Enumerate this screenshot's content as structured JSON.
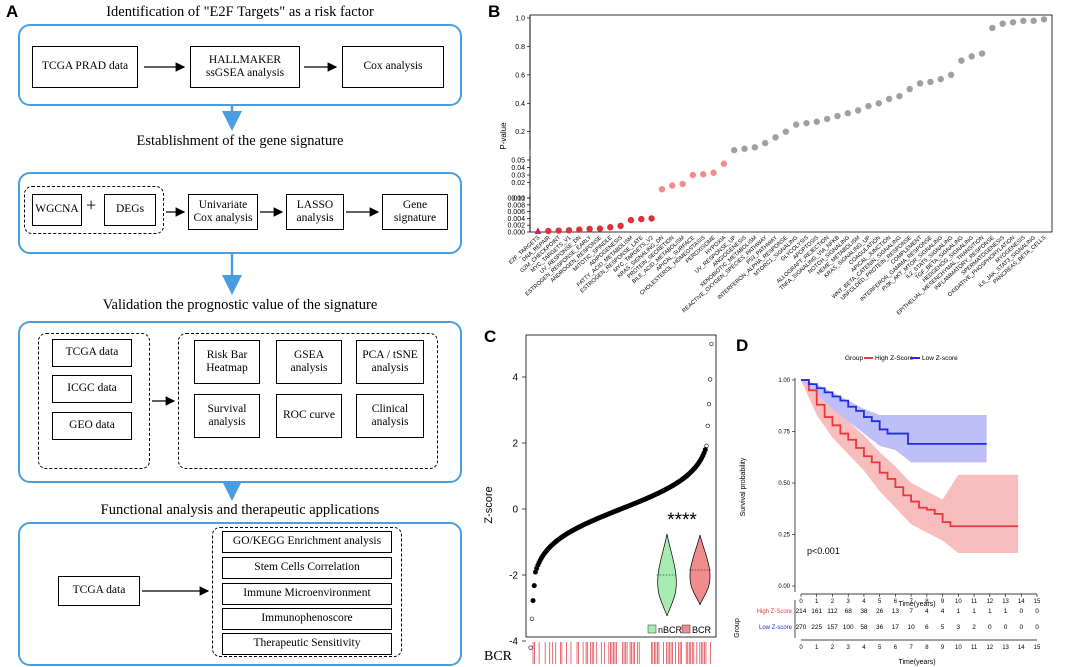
{
  "panelA": {
    "letter": "A",
    "stage1": {
      "title": "Identification of \"E2F Targets\" as a risk factor",
      "boxes": [
        "TCGA PRAD data",
        "HALLMAKER ssGSEA analysis",
        "Cox analysis"
      ]
    },
    "stage2": {
      "title": "Establishment of the gene signature",
      "boxes": [
        "WGCNA",
        "+",
        "DEGs",
        "Univariate Cox analysis",
        "LASSO analysis",
        "Gene signature"
      ]
    },
    "stage3": {
      "title": "Validation the prognostic value of the signature",
      "data_boxes": [
        "TCGA data",
        "ICGC data",
        "GEO data"
      ],
      "analysis_boxes": [
        "Risk Bar Heatmap",
        "GSEA analysis",
        "PCA / tSNE analysis",
        "Survival analysis",
        "ROC curve",
        "Clinical analysis"
      ]
    },
    "stage4": {
      "title": "Functional analysis and therapeutic applications",
      "left_box": "TCGA data",
      "boxes": [
        "GO/KEGG Enrichment analysis",
        "Stem Cells Correlation",
        "Immune Microenvironment",
        "Immunophenoscore",
        "Therapeutic Sensitivity"
      ]
    }
  },
  "chart_data": [
    {
      "panel": "B",
      "type": "scatter",
      "ylabel": "P-value",
      "upper_ticks": [
        "0.2",
        "0.4",
        "0.6",
        "0.8",
        "1.0"
      ],
      "mid_ticks": [
        "0.01",
        "0.02",
        "0.03",
        "0.04",
        "0.05"
      ],
      "lower_ticks": [
        "0.000",
        "0.002",
        "0.004",
        "0.006",
        "0.008",
        "0.010"
      ],
      "categories": [
        "E2F_TARGETS",
        "DNA_REPAIR",
        "G2M_CHECKPOINT",
        "MYC_TARGETS_V1",
        "UV_RESPONSE_DN",
        "ESTROGEN_RESPONSE_EARLY",
        "ANDROGEN_RESPONSE",
        "MITOTIC_SPINDLE",
        "ADIPOGENESIS",
        "FATTY_ACID_METABOLISM",
        "ESTROGEN_RESPONSE_LATE",
        "MYC_TARGETS_V2",
        "KRAS_SIGNALING_DN",
        "PROTEIN_SECRETION",
        "BILE_ACID_METABOLISM",
        "APICAL_SURFACE",
        "CHOLESTEROL_HOMEOSTASIS",
        "PEROXISOME",
        "HYPOXIA",
        "UV_RESPONSE_UP",
        "ANGIOGENESIS",
        "XENOBIOTIC_METABOLISM",
        "REACTIVE_OXYGEN_SPECIES_PATHWAY",
        "P53_PATHWAY",
        "INTERFERON_ALPHA_RESPONSE",
        "MTORC1_SIGNALING",
        "GLYCOLYSIS",
        "APOPTOSIS",
        "ALLOGRAFT_REJECTION",
        "TNFA_SIGNALING_VIA_NFKB",
        "NOTCH_SIGNALING",
        "HEME_METABOLISM",
        "KRAS_SIGNALING_UP",
        "COAGULATION",
        "APICAL_JUNCTION",
        "WNT_BETA_CATENIN_SIGNALING",
        "UNFOLDED_PROTEIN_RESPONSE",
        "COMPLEMENT",
        "INTERFERON_GAMMA_RESPONSE",
        "PI3K_AKT_MTOR_SIGNALING",
        "IL2_STAT5_SIGNALING",
        "TGF_BETA_SIGNALING",
        "HEDGEHOG_SIGNALING",
        "EPITHELIAL_MESENCHYMAL_TRANSITION",
        "INFLAMMATORY_RESPONSE",
        "SPERMATOGENESIS",
        "OXIDATIVE_PHOSPHORYLATION",
        "MYOGENESIS",
        "IL6_JAK_STAT3_SIGNALING",
        "PANCREAS_BETA_CELLS"
      ],
      "values": [
        0.0002,
        0.0003,
        0.0004,
        0.0005,
        0.0007,
        0.0009,
        0.001,
        0.0014,
        0.0018,
        0.0035,
        0.0038,
        0.004,
        0.011,
        0.016,
        0.018,
        0.03,
        0.031,
        0.033,
        0.045,
        0.07,
        0.08,
        0.09,
        0.12,
        0.16,
        0.2,
        0.25,
        0.26,
        0.27,
        0.29,
        0.31,
        0.33,
        0.35,
        0.38,
        0.4,
        0.43,
        0.45,
        0.5,
        0.54,
        0.55,
        0.57,
        0.6,
        0.7,
        0.73,
        0.75,
        0.93,
        0.96,
        0.97,
        0.98,
        0.98,
        0.99
      ]
    },
    {
      "panel": "C",
      "type": "scatter",
      "ylabel": "Z-score",
      "y_ticks": [
        "-4",
        "-2",
        "0",
        "2",
        "4"
      ],
      "significance": "****",
      "legend": [
        "nBCR",
        "BCR"
      ],
      "bottom_label": "BCR"
    },
    {
      "panel": "D",
      "type": "line",
      "legend_title": "Group",
      "series": [
        {
          "name": "High Z-Score",
          "color": "#e8383d"
        },
        {
          "name": "Low Z-score",
          "color": "#1f2ee0"
        }
      ],
      "ylabel": "Survival probability",
      "xlabel": "Time(years)",
      "y_ticks": [
        "0.00",
        "0.25",
        "0.50",
        "0.75",
        "1.00"
      ],
      "x_ticks": [
        "0",
        "1",
        "2",
        "3",
        "4",
        "5",
        "6",
        "7",
        "8",
        "9",
        "10",
        "11",
        "12",
        "13",
        "14",
        "15"
      ],
      "pvalue": "p<0.001",
      "risk_table": {
        "ylabel": "Group",
        "xlabel": "Time(years)",
        "rows": [
          {
            "name": "High Z-Score",
            "counts": [
              "214",
              "161",
              "112",
              "68",
              "38",
              "26",
              "13",
              "7",
              "4",
              "4",
              "1",
              "1",
              "1",
              "1",
              "0",
              "0"
            ]
          },
          {
            "name": "Low Z-score",
            "counts": [
              "270",
              "225",
              "157",
              "100",
              "58",
              "36",
              "17",
              "10",
              "6",
              "5",
              "3",
              "2",
              "0",
              "0",
              "0",
              "0"
            ]
          }
        ]
      }
    }
  ]
}
